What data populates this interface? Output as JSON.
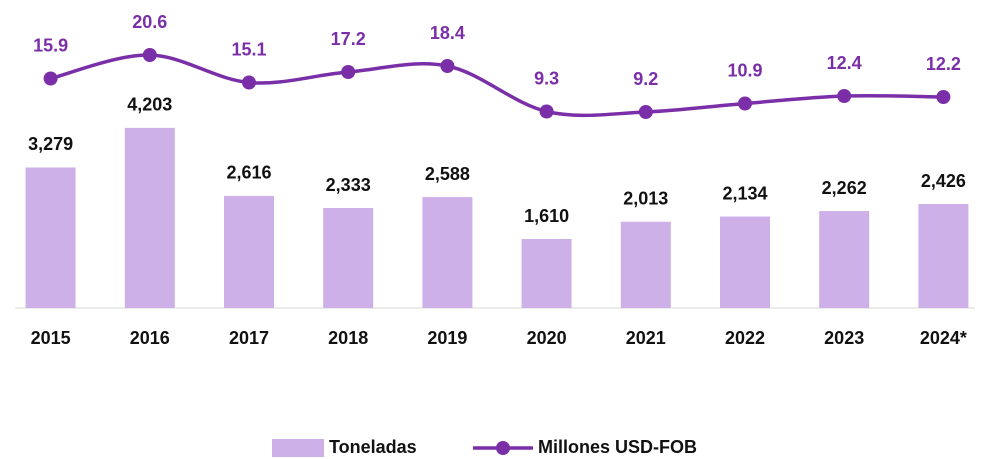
{
  "chart_data": {
    "type": "bar_line",
    "categories": [
      "2015",
      "2016",
      "2017",
      "2018",
      "2019",
      "2020",
      "2021",
      "2022",
      "2023",
      "2024*"
    ],
    "series": [
      {
        "name": "Toneladas",
        "type": "bar",
        "color": "#cdb0e8",
        "values": [
          3279,
          4203,
          2616,
          2333,
          2588,
          1610,
          2013,
          2134,
          2262,
          2426
        ],
        "value_labels": [
          "3,279",
          "4,203",
          "2,616",
          "2,333",
          "2,588",
          "1,610",
          "2,013",
          "2,134",
          "2,262",
          "2,426"
        ]
      },
      {
        "name": "Millones USD-FOB",
        "type": "line",
        "axis": "y2",
        "color": "#7a2fa8",
        "values": [
          15.9,
          20.6,
          15.1,
          17.2,
          18.4,
          9.3,
          9.2,
          10.9,
          12.4,
          12.2
        ]
      }
    ],
    "ylim": [
      0,
      7000
    ],
    "y2lim": [
      -30,
      30
    ],
    "legend": "bottom"
  }
}
